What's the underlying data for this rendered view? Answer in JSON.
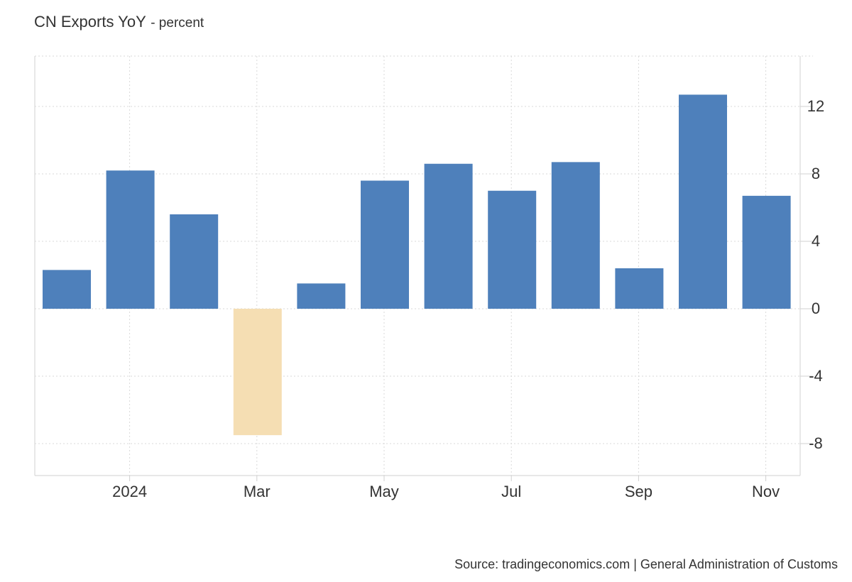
{
  "header": {
    "title": "CN Exports YoY",
    "unit": "- percent"
  },
  "footer": {
    "source": "Source: tradingeconomics.com | General Administration of Customs"
  },
  "colors": {
    "positive_bar": "#4e80bb",
    "negative_bar": "#f5deb3",
    "grid": "#d9d9d9",
    "axis_text": "#333333"
  },
  "chart_data": {
    "type": "bar",
    "title": "CN Exports YoY",
    "ylabel": "",
    "xlabel": "",
    "ylim": [
      -10,
      15
    ],
    "y_ticks": [
      12,
      8,
      4,
      0,
      -4,
      -8
    ],
    "y_axis_position": "right",
    "grid": true,
    "x_tick_labels": [
      "2024",
      "Mar",
      "May",
      "Jul",
      "Sep",
      "Nov"
    ],
    "categories": [
      "2023-12",
      "2024-01",
      "2024-02",
      "2024-03",
      "2024-04",
      "2024-05",
      "2024-06",
      "2024-07",
      "2024-08",
      "2024-09",
      "2024-10",
      "2024-11"
    ],
    "values": [
      2.3,
      8.2,
      5.6,
      -7.5,
      1.5,
      7.6,
      8.6,
      7.0,
      8.7,
      2.4,
      12.7,
      6.7
    ]
  }
}
